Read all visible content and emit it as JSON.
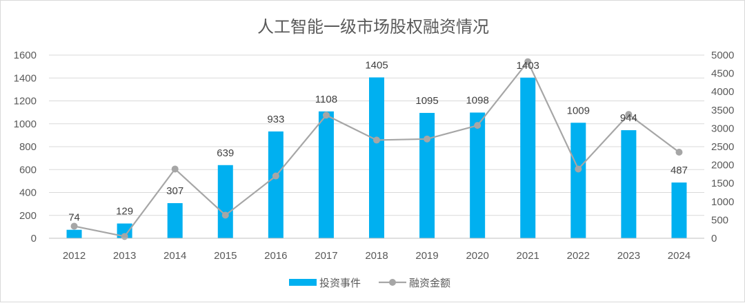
{
  "chart_data": {
    "type": "bar",
    "title": "人工智能一级市场股权融资情况",
    "categories": [
      "2012",
      "2013",
      "2014",
      "2015",
      "2016",
      "2017",
      "2018",
      "2019",
      "2020",
      "2021",
      "2022",
      "2023",
      "2024"
    ],
    "series": [
      {
        "name": "投资事件",
        "type": "bar",
        "axis": "left",
        "color": "#00b0f0",
        "values": [
          74,
          129,
          307,
          639,
          933,
          1108,
          1405,
          1095,
          1098,
          1403,
          1009,
          944,
          487
        ],
        "labels": [
          "74",
          "129",
          "307",
          "639",
          "933",
          "1108",
          "1405",
          "1095",
          "1098",
          "1403",
          "1009",
          "944",
          "487"
        ]
      },
      {
        "name": "融资金额",
        "type": "line",
        "axis": "right",
        "color": "#a6a6a6",
        "values": [
          330,
          50,
          1890,
          630,
          1700,
          3360,
          2680,
          2710,
          3080,
          4820,
          1890,
          3380,
          2350
        ]
      }
    ],
    "y_left": {
      "range": [
        0,
        1600
      ],
      "ticks": [
        "0",
        "200",
        "400",
        "600",
        "800",
        "1000",
        "1200",
        "1400",
        "1600"
      ]
    },
    "y_right": {
      "range": [
        0,
        5000
      ],
      "ticks": [
        "0",
        "500",
        "1000",
        "1500",
        "2000",
        "2500",
        "3000",
        "3500",
        "4000",
        "4500",
        "5000"
      ]
    },
    "grid": true,
    "legend_position": "bottom"
  }
}
